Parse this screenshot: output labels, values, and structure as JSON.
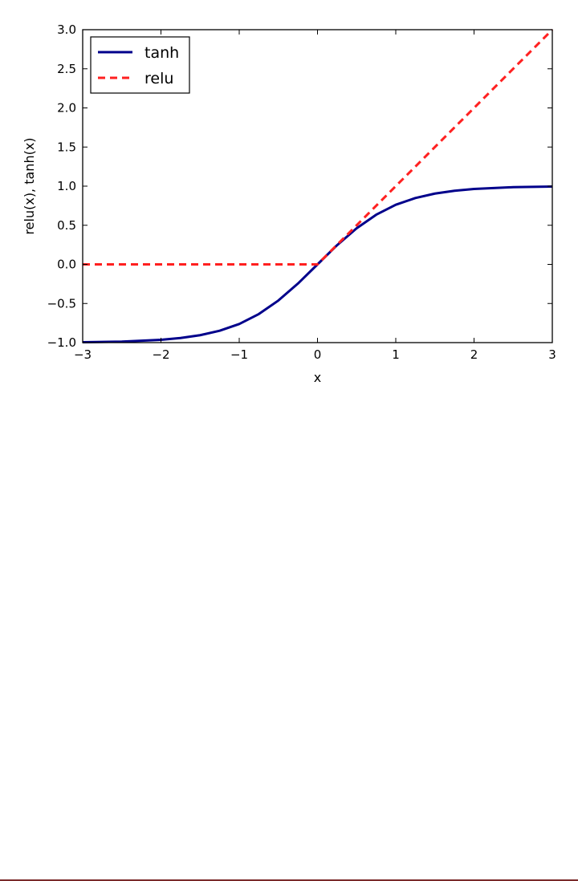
{
  "chart_data": {
    "type": "line",
    "title": "",
    "xlabel": "x",
    "ylabel": "relu(x), tanh(x)",
    "xlim": [
      -3,
      3
    ],
    "ylim": [
      -1.0,
      3.0
    ],
    "x_ticks": [
      -3,
      -2,
      -1,
      0,
      1,
      2,
      3
    ],
    "x_tick_labels": [
      "−3",
      "−2",
      "−1",
      "0",
      "1",
      "2",
      "3"
    ],
    "y_ticks": [
      -1.0,
      -0.5,
      0.0,
      0.5,
      1.0,
      1.5,
      2.0,
      2.5,
      3.0
    ],
    "y_tick_labels": [
      "−1.0",
      "−0.5",
      "0.0",
      "0.5",
      "1.0",
      "1.5",
      "2.0",
      "2.5",
      "3.0"
    ],
    "grid": false,
    "legend_position": "top-left",
    "series": [
      {
        "name": "tanh",
        "color": "#00008b",
        "style": "solid",
        "x": [
          -3,
          -2.5,
          -2,
          -1.75,
          -1.5,
          -1.25,
          -1,
          -0.75,
          -0.5,
          -0.25,
          0,
          0.25,
          0.5,
          0.75,
          1,
          1.25,
          1.5,
          1.75,
          2,
          2.5,
          3
        ],
        "values": [
          -0.995,
          -0.987,
          -0.964,
          -0.941,
          -0.905,
          -0.848,
          -0.762,
          -0.635,
          -0.462,
          -0.245,
          0.0,
          0.245,
          0.462,
          0.635,
          0.762,
          0.848,
          0.905,
          0.941,
          0.964,
          0.987,
          0.995
        ]
      },
      {
        "name": "relu",
        "color": "#ff2020",
        "style": "dashed",
        "x": [
          -3,
          -2,
          -1,
          0,
          1,
          2,
          3
        ],
        "values": [
          0,
          0,
          0,
          0,
          1,
          2,
          3
        ]
      }
    ]
  }
}
